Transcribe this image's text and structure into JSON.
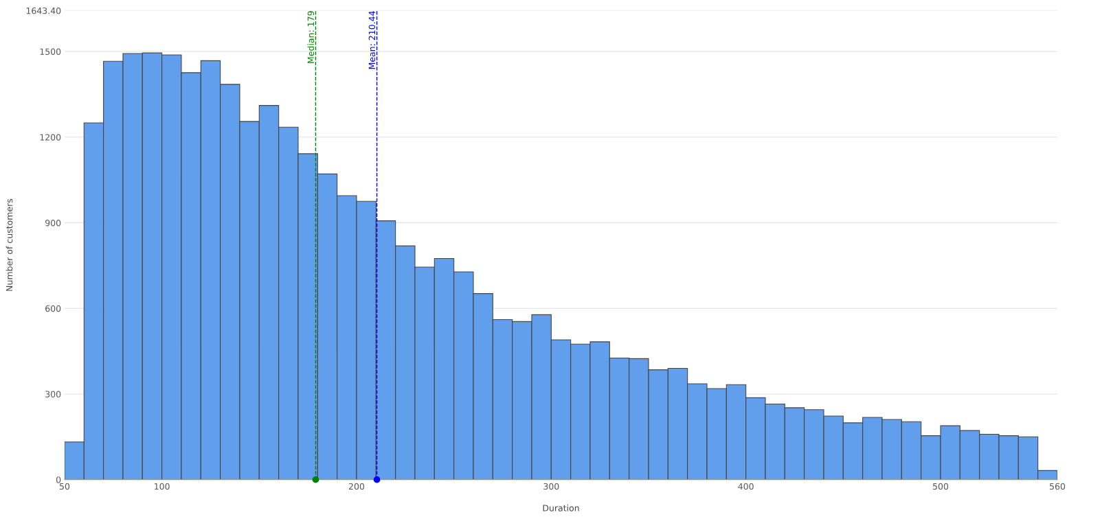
{
  "chart_data": {
    "type": "histogram",
    "xlabel": "Duration",
    "ylabel": "Number of customers",
    "color": "#619fec",
    "bins": [
      50,
      60,
      70,
      80,
      90,
      100,
      110,
      120,
      130,
      140,
      150,
      160,
      170,
      180,
      190,
      200,
      210,
      220,
      230,
      240,
      250,
      260,
      270,
      280,
      290,
      300,
      310,
      320,
      330,
      340,
      350,
      360,
      370,
      380,
      390,
      400,
      410,
      420,
      430,
      440,
      450,
      460,
      470,
      480,
      490,
      500,
      510,
      520,
      530,
      540,
      550,
      560
    ],
    "values": [
      132,
      1250,
      1466,
      1493,
      1495,
      1488,
      1426,
      1468,
      1385,
      1255,
      1311,
      1235,
      1142,
      1071,
      995,
      975,
      907,
      819,
      745,
      775,
      728,
      652,
      561,
      554,
      578,
      490,
      475,
      483,
      426,
      424,
      385,
      390,
      336,
      319,
      333,
      287,
      265,
      252,
      245,
      223,
      199,
      218,
      211,
      203,
      154,
      189,
      172,
      159,
      154,
      150,
      32
    ],
    "xlim": [
      50,
      560
    ],
    "xticks": [
      50,
      100,
      200,
      300,
      400,
      500,
      560
    ],
    "ylim": [
      0,
      1643.4
    ],
    "yticks": [
      0,
      300,
      600,
      900,
      1200,
      1500,
      {
        "value": 1643.4,
        "label": "1643.40"
      }
    ],
    "grid": "y",
    "series": [
      {
        "type": "scatter",
        "x": [
          179
        ],
        "values": [
          0
        ],
        "color": "#008000"
      },
      {
        "type": "scatter",
        "x": [
          210.44
        ],
        "values": [
          0
        ],
        "color": "#0000ff"
      }
    ],
    "ref_lines": [
      {
        "axis": "x",
        "value": 179,
        "label": "Median: 179",
        "color": "#008000",
        "line_style": "dashed"
      },
      {
        "axis": "x",
        "value": 210.44,
        "label": "Mean: 210.44",
        "color": "#0000ff",
        "line_style": "dashed"
      }
    ]
  }
}
